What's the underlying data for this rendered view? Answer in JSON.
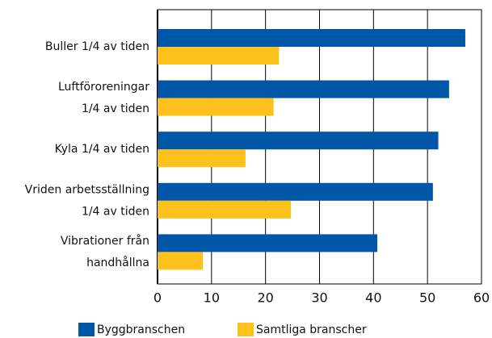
{
  "chart_data": {
    "type": "barh",
    "categories": [
      "Buller 1/4 av tiden",
      "Luftföroreningar\n1/4 av tiden",
      "Kyla 1/4 av tiden",
      "Vriden arbetsställning\n1/4 av tiden",
      "Vibrationer från\nhandhållna"
    ],
    "series": [
      {
        "name": "Byggbranschen",
        "color": "#0057a8",
        "values": [
          57,
          54,
          52,
          51,
          40.7
        ]
      },
      {
        "name": "Samtliga branscher",
        "color": "#fcc21b",
        "values": [
          22.5,
          21.5,
          16.3,
          24.7,
          8.4
        ]
      }
    ],
    "xlim": [
      0,
      60
    ],
    "xticks": [
      0,
      10,
      20,
      30,
      40,
      50,
      60
    ],
    "grid": true,
    "legend": "bottom"
  }
}
